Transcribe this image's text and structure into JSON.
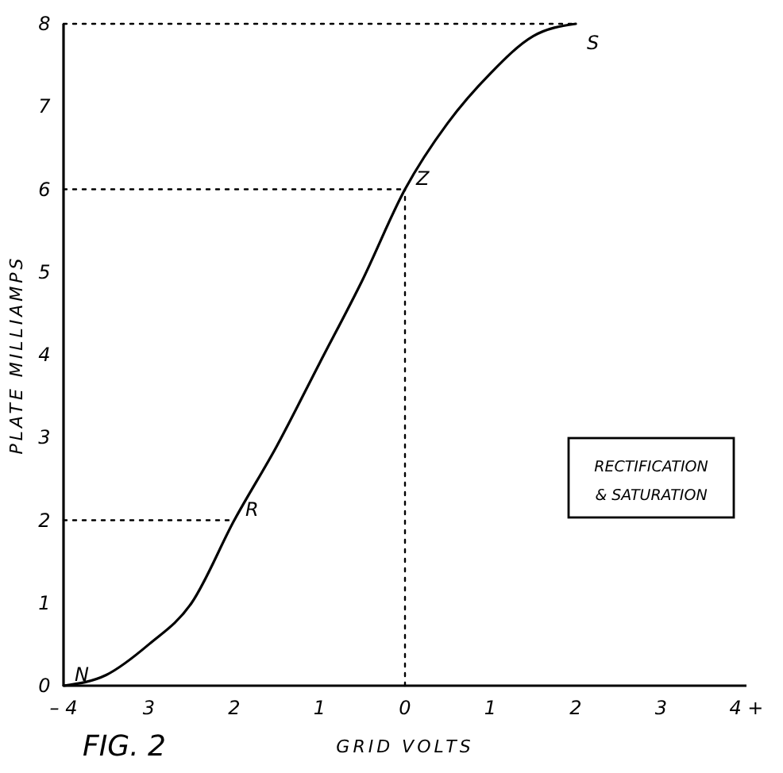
{
  "chart_data": {
    "type": "line",
    "xlabel": "GRID VOLTS",
    "ylabel": "PLATE MILLIAMPS",
    "xlim": [
      -4,
      4
    ],
    "ylim": [
      0,
      8
    ],
    "xticks": [
      {
        "value": -4,
        "label": "– 4"
      },
      {
        "value": -3,
        "label": "3"
      },
      {
        "value": -2,
        "label": "2"
      },
      {
        "value": -1,
        "label": "1"
      },
      0,
      1,
      2,
      3,
      {
        "value": 4,
        "label": "4 +"
      }
    ],
    "yticks": [
      0,
      1,
      2,
      3,
      4,
      5,
      6,
      7,
      8
    ],
    "grid": false,
    "series": [
      {
        "color": "#000000",
        "line_style": "solid",
        "x": [
          -4,
          -3.5,
          -3,
          -2.5,
          -2,
          -1.5,
          -1,
          -0.5,
          0,
          0.5,
          1,
          1.5,
          2
        ],
        "values": [
          0,
          0.13,
          0.5,
          1,
          2,
          2.9,
          3.9,
          4.9,
          6,
          6.8,
          7.4,
          7.85,
          8
        ]
      },
      {
        "color": "#000000",
        "line_style": "dotted",
        "x": [
          -4,
          2
        ],
        "values": [
          8,
          8
        ]
      },
      {
        "color": "#000000",
        "line_style": "dotted",
        "x": [
          -4,
          0
        ],
        "values": [
          6,
          6
        ]
      },
      {
        "color": "#000000",
        "line_style": "dotted",
        "x": [
          -4,
          -2
        ],
        "values": [
          2,
          2
        ]
      },
      {
        "color": "#000000",
        "line_style": "dotted",
        "x": [
          0,
          0
        ],
        "values": [
          0,
          6
        ]
      }
    ],
    "annotations": [
      {
        "text": "N",
        "x": -4,
        "y": 0
      },
      {
        "text": "R",
        "x": -2,
        "y": 2
      },
      {
        "text": "Z",
        "x": 0,
        "y": 6
      },
      {
        "text": "S",
        "x": 2,
        "y": 8
      },
      "RECTIFICATION\n& SATURATION",
      "FIG. 2"
    ]
  }
}
